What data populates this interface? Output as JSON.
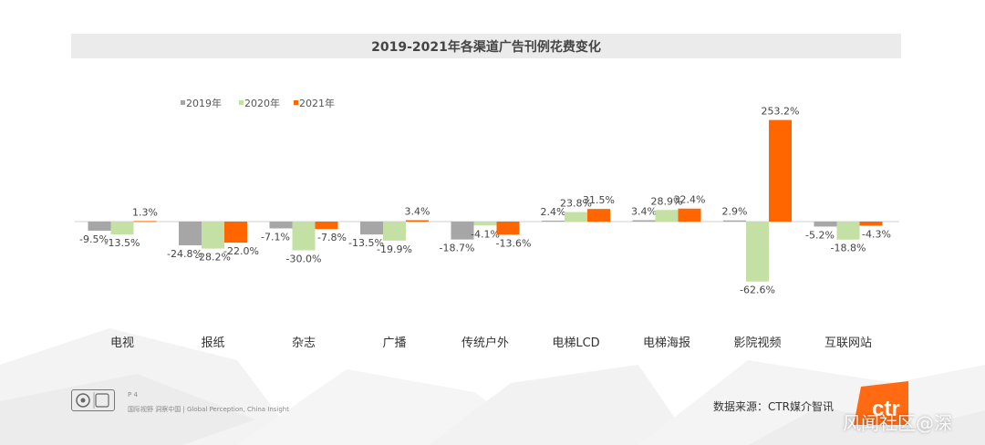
{
  "chart_data": {
    "type": "bar",
    "title": "2019-2021年各渠道广告刊例花费变化",
    "categories": [
      "电视",
      "报纸",
      "杂志",
      "广播",
      "传统户外",
      "电梯LCD",
      "电梯海报",
      "影院视频",
      "互联网站"
    ],
    "series": [
      {
        "name": "2019年",
        "color": "#a6a6a6",
        "values": [
          -9.5,
          -24.8,
          -7.1,
          -13.5,
          -18.7,
          2.4,
          3.4,
          2.9,
          -5.2
        ],
        "labels": [
          "-9.5%",
          "-24.8%",
          "-7.1%",
          "-13.5%",
          "-18.7%",
          "2.4%",
          "3.4%",
          "2.9%",
          "-5.2%"
        ]
      },
      {
        "name": "2020年",
        "color": "#c5e0a5",
        "values": [
          -13.5,
          -28.2,
          -30.0,
          -19.9,
          -4.1,
          23.8,
          28.9,
          -62.6,
          -18.8
        ],
        "labels": [
          "-13.5%",
          "-28.2%",
          "-30.0%",
          "-19.9%",
          "-4.1%",
          "23.8%",
          "28.9%",
          "-62.6%",
          "-18.8%"
        ]
      },
      {
        "name": "2021年",
        "color": "#ff6600",
        "values": [
          1.3,
          -22.0,
          -7.8,
          3.4,
          -13.6,
          31.5,
          32.4,
          253.2,
          -4.3
        ],
        "labels": [
          "1.3%",
          "-22.0%",
          "-7.8%",
          "3.4%",
          "-13.6%",
          "31.5%",
          "32.4%",
          "253.2%",
          "-4.3%"
        ]
      }
    ],
    "ylabel": "",
    "xlabel": "",
    "legend_position": "top-left"
  },
  "footer": {
    "page_number": "P 4",
    "tagline": "国际视野  洞察中国 | Global Perception,  China Insight",
    "source": "数据来源：CTR媒介智讯",
    "logo_text": "ctr",
    "watermark": "风闻社区@深"
  }
}
